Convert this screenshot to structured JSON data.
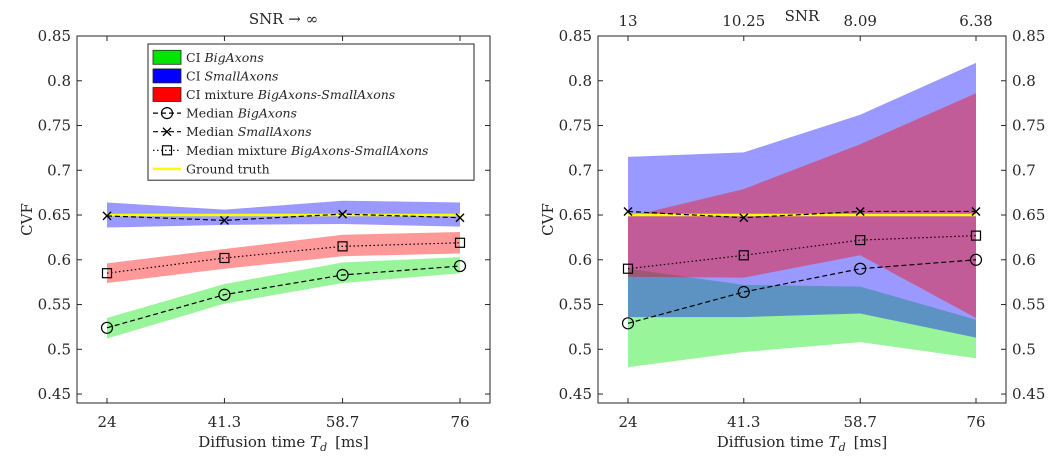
{
  "chart_data": [
    {
      "type": "line",
      "title": "SNR → ∞",
      "xlabel": "Diffusion time T_d  [ms]",
      "xlabel_main": "Diffusion time ",
      "xlabel_sym": "T",
      "xlabel_sub": "d",
      "xlabel_unit": "[ms]",
      "ylabel": "CVF",
      "x": [
        24,
        41.3,
        58.7,
        76
      ],
      "xticklabels": [
        "24",
        "41.3",
        "58.7",
        "76"
      ],
      "ylim": [
        0.44,
        0.85
      ],
      "yticks": [
        0.45,
        0.5,
        0.55,
        0.6,
        0.65,
        0.7,
        0.75,
        0.8,
        0.85
      ],
      "yticklabels": [
        "0.45",
        "0.5",
        "0.55",
        "0.6",
        "0.65",
        "0.7",
        "0.75",
        "0.8",
        "0.85"
      ],
      "legend_position": "top-center",
      "bands": [
        {
          "name": "CI BigAxons",
          "color": "#00e600",
          "lower": [
            0.512,
            0.551,
            0.574,
            0.585
          ],
          "upper": [
            0.535,
            0.573,
            0.597,
            0.603
          ]
        },
        {
          "name": "CI SmallAxons",
          "color": "#0000ff",
          "lower": [
            0.636,
            0.639,
            0.64,
            0.637
          ],
          "upper": [
            0.664,
            0.656,
            0.666,
            0.664
          ]
        },
        {
          "name": "CI mixture BigAxons-SmallAxons",
          "color": "#ff0000",
          "lower": [
            0.574,
            0.59,
            0.604,
            0.607
          ],
          "upper": [
            0.596,
            0.612,
            0.628,
            0.631
          ]
        }
      ],
      "series": [
        {
          "name": "Median BigAxons",
          "style": "dashed",
          "marker": "circle",
          "values": [
            0.524,
            0.561,
            0.583,
            0.593
          ]
        },
        {
          "name": "Median SmallAxons",
          "style": "dashed",
          "marker": "x",
          "values": [
            0.649,
            0.644,
            0.651,
            0.647
          ]
        },
        {
          "name": "Median mixture BigAxons-SmallAxons",
          "style": "dotted",
          "marker": "square",
          "values": [
            0.585,
            0.602,
            0.615,
            0.619
          ]
        }
      ],
      "ground_truth": {
        "name": "Ground truth",
        "value": 0.65,
        "color": "#ffff00"
      }
    },
    {
      "type": "line",
      "title": "SNR",
      "xlabel": "Diffusion time T_d  [ms]",
      "xlabel_main": "Diffusion time ",
      "xlabel_sym": "T",
      "xlabel_sub": "d",
      "xlabel_unit": "[ms]",
      "ylabel": "CVF",
      "x": [
        24,
        41.3,
        58.7,
        76
      ],
      "xticklabels": [
        "24",
        "41.3",
        "58.7",
        "76"
      ],
      "x_top_ticklabels": [
        "13",
        "10.25",
        "8.09",
        "6.38"
      ],
      "ylim": [
        0.44,
        0.85
      ],
      "yticks": [
        0.45,
        0.5,
        0.55,
        0.6,
        0.65,
        0.7,
        0.75,
        0.8,
        0.85
      ],
      "yticklabels": [
        "0.45",
        "0.5",
        "0.55",
        "0.6",
        "0.65",
        "0.7",
        "0.75",
        "0.8",
        "0.85"
      ],
      "y_right_ticks": true,
      "bands": [
        {
          "name": "CI BigAxons",
          "color": "#00e600",
          "lower": [
            0.48,
            0.497,
            0.508,
            0.49
          ],
          "upper": [
            0.59,
            0.572,
            0.57,
            0.533
          ]
        },
        {
          "name": "CI SmallAxons",
          "color": "#0000ff",
          "lower": [
            0.536,
            0.536,
            0.54,
            0.513
          ],
          "upper": [
            0.715,
            0.72,
            0.762,
            0.82
          ]
        },
        {
          "name": "CI mixture BigAxons-SmallAxons",
          "color": "#ff0000",
          "lower": [
            0.581,
            0.58,
            0.605,
            0.535
          ],
          "upper": [
            0.648,
            0.679,
            0.729,
            0.786
          ]
        }
      ],
      "series": [
        {
          "name": "Median BigAxons",
          "style": "dashed",
          "marker": "circle",
          "values": [
            0.529,
            0.564,
            0.59,
            0.6
          ]
        },
        {
          "name": "Median SmallAxons",
          "style": "dashed",
          "marker": "x",
          "values": [
            0.654,
            0.647,
            0.654,
            0.654
          ]
        },
        {
          "name": "Median mixture BigAxons-SmallAxons",
          "style": "dotted",
          "marker": "square",
          "values": [
            0.59,
            0.605,
            0.622,
            0.627
          ]
        }
      ],
      "ground_truth": {
        "name": "Ground truth",
        "value": 0.65,
        "color": "#ffff00"
      }
    }
  ],
  "legend": {
    "entries": [
      {
        "kind": "patch",
        "color": "#00e600",
        "prefix": "CI ",
        "italic": "BigAxons"
      },
      {
        "kind": "patch",
        "color": "#0000ff",
        "prefix": "CI ",
        "italic": "SmallAxons"
      },
      {
        "kind": "patch",
        "color": "#ff0000",
        "prefix": "CI mixture ",
        "italic": "BigAxons-SmallAxons"
      },
      {
        "kind": "line",
        "style": "dashed",
        "marker": "circle",
        "prefix": "Median ",
        "italic": "BigAxons"
      },
      {
        "kind": "line",
        "style": "dashed",
        "marker": "x",
        "prefix": "Median ",
        "italic": "SmallAxons"
      },
      {
        "kind": "line",
        "style": "dotted",
        "marker": "square",
        "prefix": "Median mixture ",
        "italic": "BigAxons-SmallAxons"
      },
      {
        "kind": "line",
        "style": "solid",
        "color": "#ffff00",
        "prefix": "Ground truth",
        "italic": ""
      }
    ]
  }
}
